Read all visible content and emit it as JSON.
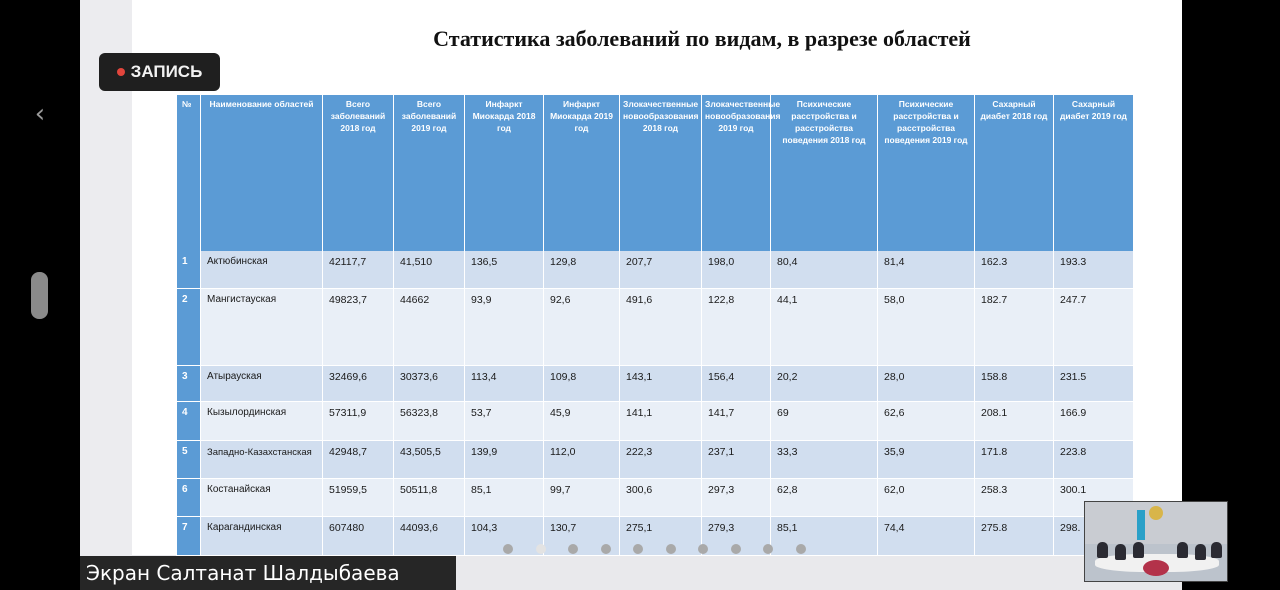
{
  "recording": {
    "label": "ЗАПИСЬ"
  },
  "slide": {
    "title": "Статистика заболеваний по видам, в разрезе областей",
    "table": {
      "headers": [
        "№",
        "Наименование областей",
        "Всего заболеваний 2018 год",
        "Всего заболеваний 2019 год",
        "Инфаркт Миокарда 2018 год",
        "Инфаркт Миокарда 2019 год",
        "Злокачественные новообразования 2018 год",
        "Злокачественные новообразования 2019 год",
        "Психические расстройства и расстройства поведения 2018 год",
        "Психические расстройства и расстройства поведения 2019 год",
        "Сахарный диабет 2018 год",
        "Сахарный диабет 2019 год"
      ],
      "rows": [
        [
          "1",
          "Актюбинская",
          "42117,7",
          "41,510",
          "136,5",
          "129,8",
          "207,7",
          "198,0",
          "80,4",
          "81,4",
          "162.3",
          "193.3"
        ],
        [
          "2",
          "Мангистауская",
          "49823,7",
          "44662",
          "93,9",
          "92,6",
          "491,6",
          "122,8",
          "44,1",
          "58,0",
          "182.7",
          "247.7"
        ],
        [
          "3",
          "Атырауская",
          "32469,6",
          "30373,6",
          "113,4",
          "109,8",
          "143,1",
          "156,4",
          "20,2",
          "28,0",
          "158.8",
          "231.5"
        ],
        [
          "4",
          "Кызылординская",
          "57311,9",
          "56323,8",
          "53,7",
          "45,9",
          "141,1",
          "141,7",
          "69",
          "62,6",
          "208.1",
          "166.9"
        ],
        [
          "5",
          "Западно-Казахстанская",
          "42948,7",
          "43,505,5",
          "139,9",
          "112,0",
          "222,3",
          "237,1",
          "33,3",
          "35,9",
          "171.8",
          "223.8"
        ],
        [
          "6",
          "Костанайская",
          "51959,5",
          "50511,8",
          "85,1",
          "99,7",
          "300,6",
          "297,3",
          "62,8",
          "62,0",
          "258.3",
          "300.1"
        ],
        [
          "7",
          "Карагандинская",
          "607480",
          "44093,6",
          "104,3",
          "130,7",
          "275,1",
          "279,3",
          "85,1",
          "74,4",
          "275.8",
          "298."
        ]
      ]
    }
  },
  "pager": {
    "count": 10,
    "active_index": 1
  },
  "presenter": {
    "label": "Экран Салтанат Шалдыбаева"
  },
  "icons": {
    "back": "chevron-left-icon",
    "record": "record-dot-icon"
  },
  "colors": {
    "header_blue": "#5b9bd5",
    "row_odd": "#d1deef",
    "row_even": "#e9eff7",
    "record_red": "#e2453c"
  }
}
